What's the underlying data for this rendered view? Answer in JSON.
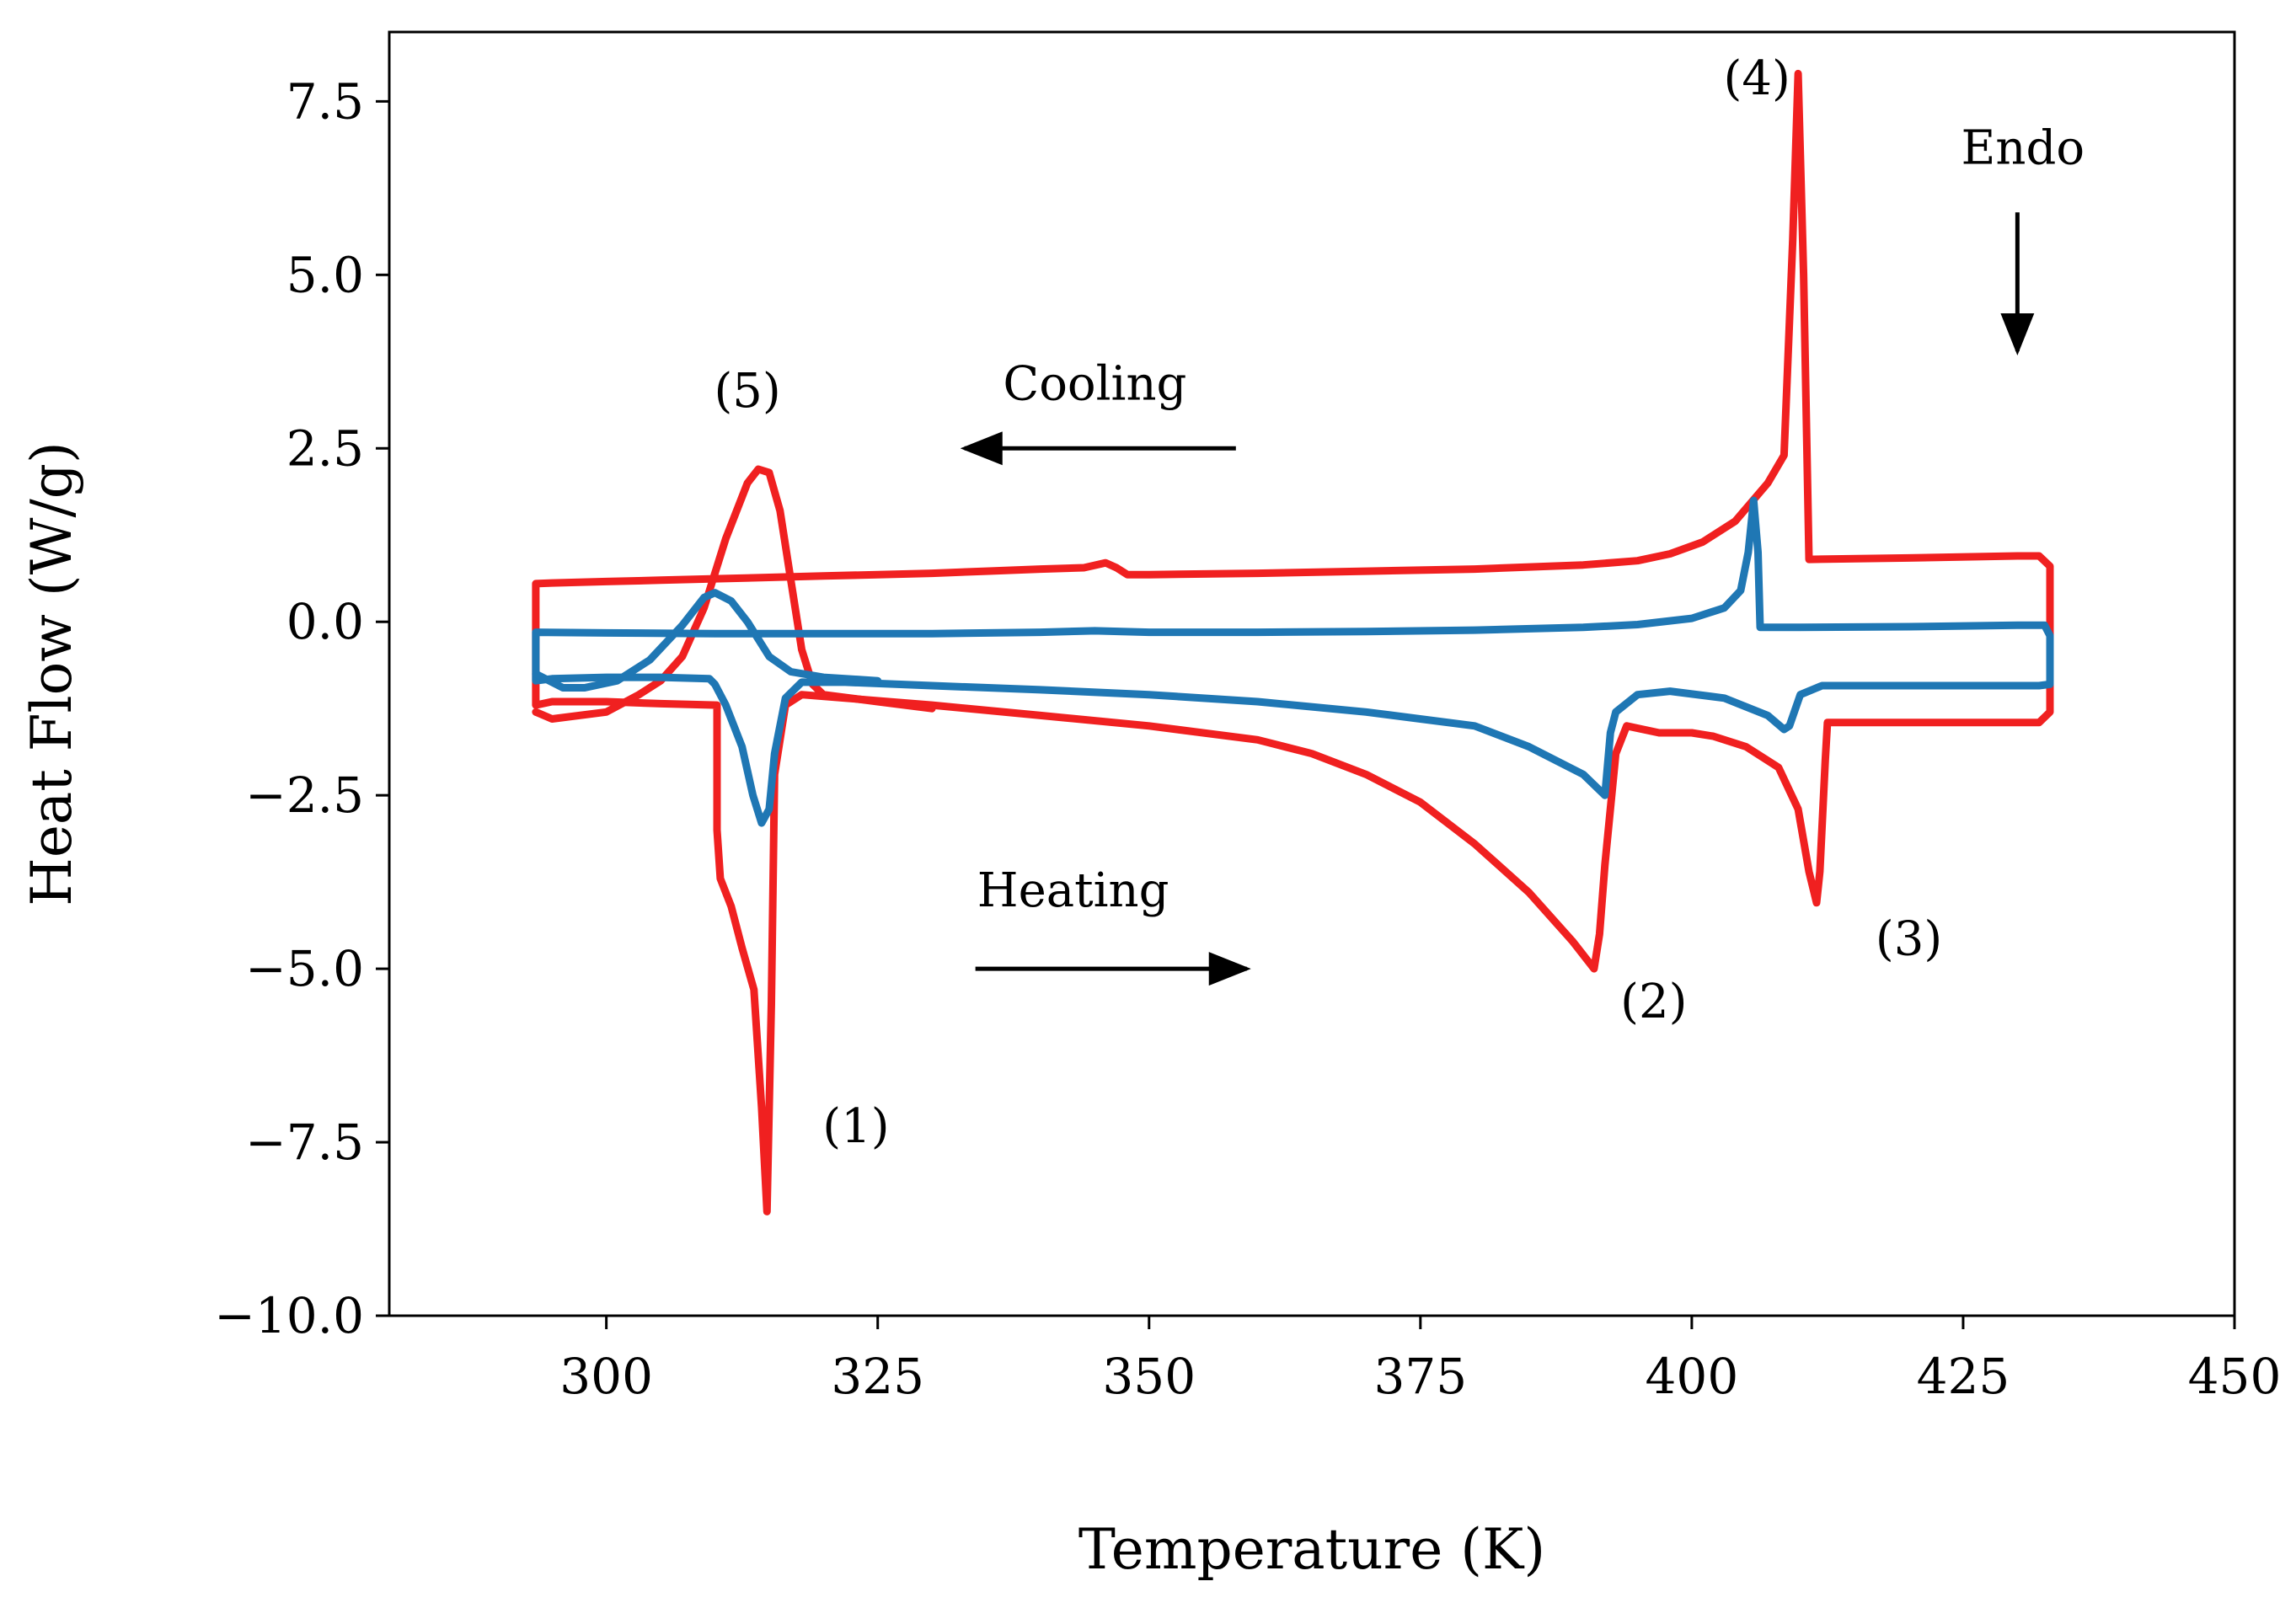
{
  "chart_data": {
    "type": "line",
    "title": "",
    "xlabel": "Temperature (K)",
    "ylabel": "Heat Flow (W/g)",
    "xlim": [
      280,
      450
    ],
    "ylim": [
      -10.0,
      8.5
    ],
    "xticks": [
      300,
      325,
      350,
      375,
      400,
      425,
      450
    ],
    "yticks": [
      -10.0,
      -7.5,
      -5.0,
      -2.5,
      0.0,
      2.5,
      5.0,
      7.5
    ],
    "xtick_labels": [
      "300",
      "325",
      "350",
      "375",
      "400",
      "425",
      "450"
    ],
    "ytick_labels": [
      "−10.0",
      "−7.5",
      "−5.0",
      "−2.5",
      "0.0",
      "2.5",
      "5.0",
      "7.5"
    ],
    "grid": false,
    "series": [
      {
        "name": "red-loop",
        "color": "#f02020",
        "points": [
          [
            293.5,
            0.55
          ],
          [
            295,
            0.56
          ],
          [
            300,
            0.58
          ],
          [
            305,
            0.6
          ],
          [
            310,
            0.62
          ],
          [
            315,
            0.64
          ],
          [
            320,
            0.66
          ],
          [
            325,
            0.68
          ],
          [
            330,
            0.7
          ],
          [
            335,
            0.73
          ],
          [
            340,
            0.76
          ],
          [
            344,
            0.78
          ],
          [
            346,
            0.85
          ],
          [
            347,
            0.78
          ],
          [
            348,
            0.68
          ],
          [
            350,
            0.68
          ],
          [
            360,
            0.7
          ],
          [
            370,
            0.73
          ],
          [
            380,
            0.76
          ],
          [
            390,
            0.82
          ],
          [
            395,
            0.88
          ],
          [
            398,
            0.98
          ],
          [
            401,
            1.15
          ],
          [
            404,
            1.45
          ],
          [
            407,
            2.0
          ],
          [
            408.5,
            2.4
          ],
          [
            409.3,
            5.5
          ],
          [
            409.8,
            7.9
          ],
          [
            410.3,
            5.0
          ],
          [
            410.8,
            0.9
          ],
          [
            420,
            0.92
          ],
          [
            430,
            0.95
          ],
          [
            432,
            0.95
          ],
          [
            433,
            0.8
          ],
          [
            433,
            -1.3
          ],
          [
            432,
            -1.45
          ],
          [
            420,
            -1.45
          ],
          [
            412.5,
            -1.45
          ],
          [
            412.3,
            -2.0
          ],
          [
            411.8,
            -3.6
          ],
          [
            411.5,
            -4.05
          ],
          [
            410.8,
            -3.6
          ],
          [
            409.8,
            -2.7
          ],
          [
            408,
            -2.1
          ],
          [
            405,
            -1.8
          ],
          [
            402,
            -1.65
          ],
          [
            400,
            -1.6
          ],
          [
            397,
            -1.6
          ],
          [
            394,
            -1.5
          ],
          [
            393,
            -1.9
          ],
          [
            392,
            -3.5
          ],
          [
            391.5,
            -4.5
          ],
          [
            391,
            -5.0
          ],
          [
            389,
            -4.6
          ],
          [
            385,
            -3.9
          ],
          [
            380,
            -3.2
          ],
          [
            375,
            -2.6
          ],
          [
            370,
            -2.2
          ],
          [
            365,
            -1.9
          ],
          [
            360,
            -1.7
          ],
          [
            350,
            -1.5
          ],
          [
            340,
            -1.35
          ],
          [
            330,
            -1.2
          ],
          [
            322,
            -1.1
          ],
          [
            318,
            -1.05
          ],
          [
            316.5,
            -1.2
          ],
          [
            315.5,
            -2.2
          ],
          [
            315.2,
            -5.5
          ],
          [
            314.8,
            -8.5
          ],
          [
            314.3,
            -7.0
          ],
          [
            313.6,
            -5.3
          ],
          [
            312.5,
            -4.7
          ],
          [
            311.5,
            -4.1
          ],
          [
            310.5,
            -3.7
          ],
          [
            310.2,
            -3.0
          ],
          [
            310.2,
            -1.2
          ],
          [
            305,
            -1.18
          ],
          [
            300,
            -1.15
          ],
          [
            295,
            -1.15
          ],
          [
            293.5,
            -1.2
          ],
          [
            293.5,
            0.55
          ]
        ]
      },
      {
        "name": "red-cooling-peak",
        "color": "#f02020",
        "points": [
          [
            293.5,
            -1.3
          ],
          [
            295,
            -1.4
          ],
          [
            300,
            -1.3
          ],
          [
            303,
            -1.05
          ],
          [
            305,
            -0.85
          ],
          [
            307,
            -0.5
          ],
          [
            309,
            0.2
          ],
          [
            311,
            1.2
          ],
          [
            313,
            2.0
          ],
          [
            314,
            2.2
          ],
          [
            315,
            2.15
          ],
          [
            316,
            1.6
          ],
          [
            317,
            0.6
          ],
          [
            318,
            -0.4
          ],
          [
            319,
            -0.9
          ],
          [
            320,
            -1.05
          ],
          [
            325,
            -1.15
          ],
          [
            330,
            -1.25
          ]
        ]
      },
      {
        "name": "blue-loop",
        "color": "#1f77b4",
        "points": [
          [
            293.5,
            -0.15
          ],
          [
            300,
            -0.16
          ],
          [
            310,
            -0.17
          ],
          [
            320,
            -0.17
          ],
          [
            330,
            -0.17
          ],
          [
            340,
            -0.15
          ],
          [
            345,
            -0.13
          ],
          [
            350,
            -0.15
          ],
          [
            360,
            -0.15
          ],
          [
            370,
            -0.14
          ],
          [
            380,
            -0.12
          ],
          [
            390,
            -0.08
          ],
          [
            395,
            -0.04
          ],
          [
            400,
            0.05
          ],
          [
            403,
            0.2
          ],
          [
            404.5,
            0.45
          ],
          [
            405.2,
            1.0
          ],
          [
            405.7,
            1.75
          ],
          [
            406.1,
            1.0
          ],
          [
            406.3,
            -0.08
          ],
          [
            410,
            -0.08
          ],
          [
            420,
            -0.07
          ],
          [
            430,
            -0.05
          ],
          [
            432.5,
            -0.05
          ],
          [
            433,
            -0.2
          ],
          [
            433,
            -0.9
          ],
          [
            432,
            -0.92
          ],
          [
            420,
            -0.92
          ],
          [
            412,
            -0.92
          ],
          [
            410,
            -1.05
          ],
          [
            409,
            -1.5
          ],
          [
            408.5,
            -1.55
          ],
          [
            407,
            -1.35
          ],
          [
            403,
            -1.1
          ],
          [
            398,
            -1.0
          ],
          [
            395,
            -1.05
          ],
          [
            393,
            -1.3
          ],
          [
            392.5,
            -1.6
          ],
          [
            392,
            -2.5
          ],
          [
            390,
            -2.2
          ],
          [
            385,
            -1.8
          ],
          [
            380,
            -1.5
          ],
          [
            370,
            -1.3
          ],
          [
            360,
            -1.15
          ],
          [
            350,
            -1.05
          ],
          [
            340,
            -0.98
          ],
          [
            330,
            -0.92
          ],
          [
            322,
            -0.87
          ],
          [
            318,
            -0.87
          ],
          [
            316.5,
            -1.1
          ],
          [
            315.5,
            -1.9
          ],
          [
            315,
            -2.7
          ],
          [
            314.3,
            -2.9
          ],
          [
            313.5,
            -2.5
          ],
          [
            312.5,
            -1.8
          ],
          [
            311,
            -1.2
          ],
          [
            310,
            -0.9
          ],
          [
            309.5,
            -0.82
          ],
          [
            305,
            -0.8
          ],
          [
            300,
            -0.8
          ],
          [
            295,
            -0.82
          ],
          [
            293.5,
            -0.85
          ],
          [
            293.5,
            -0.15
          ]
        ]
      },
      {
        "name": "blue-cooling-peak",
        "color": "#1f77b4",
        "points": [
          [
            293.5,
            -0.75
          ],
          [
            296,
            -0.95
          ],
          [
            298,
            -0.95
          ],
          [
            301,
            -0.85
          ],
          [
            304,
            -0.55
          ],
          [
            307,
            -0.05
          ],
          [
            309,
            0.35
          ],
          [
            310,
            0.42
          ],
          [
            311.5,
            0.3
          ],
          [
            313,
            0.0
          ],
          [
            315,
            -0.5
          ],
          [
            317,
            -0.72
          ],
          [
            320,
            -0.8
          ],
          [
            325,
            -0.85
          ]
        ]
      }
    ],
    "annotations": [
      {
        "text": "(1)",
        "x": 323,
        "y": -7.5
      },
      {
        "text": "(2)",
        "x": 396.5,
        "y": -5.7
      },
      {
        "text": "(3)",
        "x": 420,
        "y": -4.8
      },
      {
        "text": "(4)",
        "x": 406,
        "y": 7.6
      },
      {
        "text": "(5)",
        "x": 313,
        "y": 3.1
      },
      {
        "text": "Cooling",
        "x": 345,
        "y": 3.2
      },
      {
        "text": "Heating",
        "x": 343,
        "y": -4.1
      },
      {
        "text": "Endo",
        "x": 430.5,
        "y": 6.6
      }
    ],
    "arrows": [
      {
        "name": "cooling-arrow",
        "from": [
          358,
          2.5
        ],
        "to": [
          333,
          2.5
        ]
      },
      {
        "name": "heating-arrow",
        "from": [
          334,
          -5.0
        ],
        "to": [
          359,
          -5.0
        ]
      },
      {
        "name": "endo-arrow",
        "from": [
          430,
          5.9
        ],
        "to": [
          430,
          3.9
        ]
      }
    ]
  }
}
